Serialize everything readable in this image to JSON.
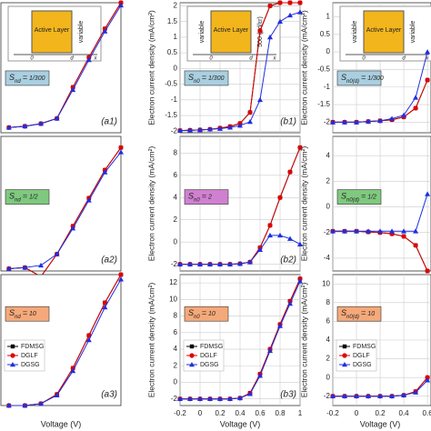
{
  "chart_data": [
    {
      "type": "line",
      "panel_label": "(a1)",
      "xlim": [
        0.25,
        1.0
      ],
      "ylim": [
        -2,
        8
      ],
      "x": [
        0.3,
        0.4,
        0.5,
        0.6,
        0.7,
        0.8,
        0.9,
        1.0
      ],
      "annotation": {
        "symbol": "S",
        "subscript": "nd",
        "relation": "=",
        "value": "1/300",
        "color": "#a9cfe0"
      },
      "inset": {
        "left": "",
        "center": "Active Layer",
        "right": "variable",
        "axis": [
          "0",
          "d",
          "x"
        ]
      },
      "series": [
        {
          "color": "#000000",
          "marker": "square",
          "values": [
            -1.6,
            -1.5,
            -1.3,
            -0.9,
            1.5,
            3.8,
            6,
            8
          ]
        },
        {
          "color": "#e00000",
          "marker": "circle",
          "values": [
            -1.6,
            -1.5,
            -1.3,
            -0.9,
            1.5,
            3.8,
            6,
            8
          ]
        },
        {
          "color": "#1f2fe0",
          "marker": "triangle",
          "values": [
            -1.6,
            -1.5,
            -1.3,
            -0.9,
            1.3,
            3.6,
            5.8,
            7.8
          ]
        }
      ]
    },
    {
      "type": "line",
      "panel_label": "(b1)",
      "xlim": [
        -0.2,
        1.0
      ],
      "xticks": [
        -0.2,
        0,
        0.2,
        0.4,
        0.6,
        0.8,
        1
      ],
      "ylim": [
        -2.05,
        2.1
      ],
      "yticks": [
        -2,
        -1.5,
        -1,
        -0.5,
        0,
        0.5,
        1,
        1.5,
        2
      ],
      "grid": true,
      "ylabel": "Electron current density (mA/cm²)",
      "x": [
        -0.2,
        -0.1,
        0,
        0.1,
        0.2,
        0.3,
        0.4,
        0.5,
        0.6,
        0.7,
        0.8,
        0.9,
        1.0
      ],
      "annotation": {
        "symbol": "S",
        "subscript": "n0",
        "relation": "=",
        "value": "1/300",
        "color": "#a9cfe0"
      },
      "inset": {
        "left": "variable",
        "center": "Active Layer",
        "right": "500 (ρd/εr)",
        "axis": [
          "0",
          "d",
          "x"
        ]
      },
      "series": [
        {
          "color": "#000000",
          "marker": "square",
          "values": [
            -1.98,
            -1.97,
            -1.96,
            -1.94,
            -1.9,
            -1.85,
            -1.75,
            -1.4,
            1.2,
            2.0,
            2.1,
            2.1,
            2.1
          ]
        },
        {
          "color": "#e00000",
          "marker": "circle",
          "values": [
            -1.98,
            -1.97,
            -1.96,
            -1.94,
            -1.9,
            -1.85,
            -1.75,
            -1.4,
            1.2,
            2.0,
            2.1,
            2.1,
            2.1
          ]
        },
        {
          "color": "#1f2fe0",
          "marker": "triangle",
          "values": [
            -1.98,
            -1.97,
            -1.96,
            -1.94,
            -1.92,
            -1.88,
            -1.82,
            -1.7,
            -1.0,
            1.0,
            1.5,
            1.7,
            1.8
          ]
        }
      ]
    },
    {
      "type": "line",
      "xlim": [
        -0.2,
        0.63
      ],
      "xticks": [
        -0.2,
        0,
        0.2,
        0.4,
        0.6
      ],
      "ylim": [
        -2.3,
        1.4
      ],
      "yticks": [
        -2,
        -1.5,
        -1,
        -0.5,
        0,
        0.5,
        1
      ],
      "grid": true,
      "ylabel": "Electron current density (mA/cm²)",
      "x": [
        -0.2,
        -0.1,
        0,
        0.1,
        0.2,
        0.3,
        0.4,
        0.5,
        0.6
      ],
      "annotation": {
        "symbol": "S",
        "subscript": "n0(d)",
        "relation": "=",
        "value": "1/300",
        "color": "#a9cfe0"
      },
      "inset": {
        "left": "variable",
        "center": "Active Layer",
        "right": "variable",
        "axis": [
          "0",
          "d",
          "x"
        ]
      },
      "series": [
        {
          "color": "#000000",
          "marker": "square",
          "values": [
            -2,
            -2,
            -2,
            -1.98,
            -1.96,
            -1.93,
            -1.85,
            -1.6,
            -0.8
          ]
        },
        {
          "color": "#e00000",
          "marker": "circle",
          "values": [
            -2,
            -2,
            -2,
            -1.98,
            -1.96,
            -1.93,
            -1.85,
            -1.6,
            -0.8
          ]
        },
        {
          "color": "#1f2fe0",
          "marker": "triangle",
          "values": [
            -2,
            -2,
            -2,
            -1.98,
            -1.96,
            -1.9,
            -1.8,
            -1.3,
            0
          ]
        }
      ]
    },
    {
      "type": "line",
      "panel_label": "(a2)",
      "xlim": [
        0.25,
        1.0
      ],
      "ylim": [
        -2,
        10
      ],
      "x": [
        0.3,
        0.4,
        0.5,
        0.6,
        0.7,
        0.8,
        0.9,
        1.0
      ],
      "annotation": {
        "symbol": "S",
        "subscript": "nd",
        "relation": "=",
        "value": "1/2",
        "color": "#7fc97f"
      },
      "series": [
        {
          "color": "#000000",
          "marker": "square",
          "values": [
            -1.8,
            -1.7,
            -2.5,
            -0.5,
            2,
            4.5,
            7,
            9
          ]
        },
        {
          "color": "#e00000",
          "marker": "circle",
          "values": [
            -1.8,
            -1.7,
            -2.5,
            -0.5,
            2,
            4.5,
            7,
            9
          ]
        },
        {
          "color": "#1f2fe0",
          "marker": "triangle",
          "values": [
            -1.8,
            -1.7,
            -1.5,
            -0.5,
            1.8,
            4.3,
            6.8,
            8.6
          ]
        }
      ]
    },
    {
      "type": "line",
      "panel_label": "(b2)",
      "xlim": [
        -0.2,
        1.0
      ],
      "xticks": [
        -0.2,
        0,
        0.2,
        0.4,
        0.6,
        0.8,
        1
      ],
      "ylim": [
        -2.6,
        9.5
      ],
      "yticks": [
        -2,
        0,
        2,
        4,
        6,
        8
      ],
      "grid": true,
      "ylabel": "Electron current density (mA/cm²)",
      "x": [
        -0.2,
        -0.1,
        0,
        0.1,
        0.2,
        0.3,
        0.4,
        0.5,
        0.6,
        0.7,
        0.8,
        0.9,
        1.0
      ],
      "annotation": {
        "symbol": "S",
        "subscript": "n0",
        "relation": "=",
        "value": "2",
        "color": "#d080d0"
      },
      "series": [
        {
          "color": "#000000",
          "marker": "square",
          "values": [
            -2,
            -2,
            -2,
            -2,
            -2,
            -2,
            -1.95,
            -1.8,
            -0.5,
            1.5,
            4,
            6.3,
            8.5
          ]
        },
        {
          "color": "#e00000",
          "marker": "circle",
          "values": [
            -2,
            -2,
            -2,
            -2,
            -2,
            -2,
            -1.95,
            -1.8,
            -0.5,
            1.5,
            4,
            6.3,
            8.5
          ]
        },
        {
          "color": "#1f2fe0",
          "marker": "triangle",
          "values": [
            -2,
            -2,
            -2,
            -2,
            -2,
            -2,
            -1.95,
            -1.8,
            -0.7,
            0.6,
            0.6,
            0.3,
            -0.2
          ]
        }
      ]
    },
    {
      "type": "line",
      "xlim": [
        -0.2,
        0.63
      ],
      "xticks": [
        -0.2,
        0,
        0.2,
        0.4,
        0.6
      ],
      "ylim": [
        -5,
        5.5
      ],
      "yticks": [
        -4,
        -2,
        0,
        2,
        4
      ],
      "grid": true,
      "ylabel": "Electron current density (mA/cm²)",
      "x": [
        -0.2,
        -0.1,
        0,
        0.1,
        0.2,
        0.3,
        0.4,
        0.5,
        0.6
      ],
      "annotation": {
        "symbol": "S",
        "subscript": "n0(d)",
        "relation": "=",
        "value": "1/2",
        "color": "#7fc97f"
      },
      "series": [
        {
          "color": "#000000",
          "marker": "square",
          "values": [
            -1.9,
            -1.9,
            -1.9,
            -1.95,
            -2,
            -2.1,
            -2.3,
            -3,
            -5
          ]
        },
        {
          "color": "#e00000",
          "marker": "circle",
          "values": [
            -1.9,
            -1.9,
            -1.9,
            -1.95,
            -2,
            -2.1,
            -2.3,
            -3,
            -5
          ]
        },
        {
          "color": "#1f2fe0",
          "marker": "triangle",
          "values": [
            -1.9,
            -1.9,
            -1.9,
            -1.9,
            -1.9,
            -1.9,
            -1.9,
            -1.9,
            1
          ]
        }
      ]
    },
    {
      "type": "line",
      "panel_label": "(a3)",
      "xlim": [
        0.25,
        1.0
      ],
      "ylim": [
        -2,
        12
      ],
      "xlabel": "Voltage (V)",
      "legend": "lower left",
      "x": [
        0.3,
        0.4,
        0.5,
        0.6,
        0.7,
        0.8,
        0.9,
        1.0
      ],
      "annotation": {
        "symbol": "S",
        "subscript": "nd",
        "relation": "=",
        "value": "10",
        "color": "#f5a97a"
      },
      "series": [
        {
          "name": "FDMSG",
          "color": "#000000",
          "marker": "square",
          "values": [
            -2,
            -2,
            -1.8,
            -0.8,
            2,
            5.5,
            9,
            12
          ]
        },
        {
          "name": "DGLF",
          "color": "#e00000",
          "marker": "circle",
          "values": [
            -2,
            -2,
            -1.8,
            -0.8,
            2,
            5.5,
            9,
            12
          ]
        },
        {
          "name": "DGSG",
          "color": "#1f2fe0",
          "marker": "triangle",
          "values": [
            -2,
            -2,
            -1.8,
            -0.9,
            1.7,
            5,
            8.5,
            11.5
          ]
        }
      ]
    },
    {
      "type": "line",
      "panel_label": "(b3)",
      "xlim": [
        -0.2,
        1.0
      ],
      "xticks": [
        -0.2,
        0,
        0.2,
        0.4,
        0.6,
        0.8,
        1
      ],
      "ylim": [
        -2.8,
        13
      ],
      "yticks": [
        -2,
        0,
        2,
        4,
        6,
        8,
        10,
        12
      ],
      "grid": true,
      "xlabel": "Voltage (V)",
      "ylabel": "Electron current density (mA/cm²)",
      "legend": "lower left",
      "x": [
        -0.2,
        -0.1,
        0,
        0.1,
        0.2,
        0.3,
        0.4,
        0.5,
        0.6,
        0.7,
        0.8,
        0.9,
        1.0
      ],
      "annotation": {
        "symbol": "S",
        "subscript": "n0",
        "relation": "=",
        "value": "10",
        "color": "#f5a97a"
      },
      "series": [
        {
          "name": "FDMSG",
          "color": "#000000",
          "marker": "square",
          "values": [
            -2,
            -2,
            -2,
            -2,
            -2,
            -2,
            -1.9,
            -1.3,
            1.0,
            4,
            7,
            9.8,
            12.5
          ]
        },
        {
          "name": "DGLF",
          "color": "#e00000",
          "marker": "circle",
          "values": [
            -2,
            -2,
            -2,
            -2,
            -2,
            -2,
            -1.9,
            -1.3,
            1.0,
            4,
            7,
            9.8,
            12.5
          ]
        },
        {
          "name": "DGSG",
          "color": "#1f2fe0",
          "marker": "triangle",
          "values": [
            -2,
            -2,
            -2,
            -2,
            -2,
            -2,
            -1.9,
            -1.4,
            0.8,
            3.8,
            6.8,
            9.5,
            12.2
          ]
        }
      ]
    },
    {
      "type": "line",
      "xlim": [
        -0.2,
        0.63
      ],
      "xticks": [
        -0.2,
        0,
        0.2,
        0.4,
        0.6
      ],
      "ylim": [
        -3,
        11
      ],
      "yticks": [
        -2,
        0,
        2,
        4,
        6,
        8,
        10
      ],
      "grid": true,
      "xlabel": "Voltage (V)",
      "ylabel": "Electron current density (mA/cm²)",
      "legend": "lower left",
      "x": [
        -0.2,
        -0.1,
        0,
        0.1,
        0.2,
        0.3,
        0.4,
        0.5,
        0.6
      ],
      "annotation": {
        "symbol": "S",
        "subscript": "n0(d)",
        "relation": "=",
        "value": "10",
        "color": "#f5a97a"
      },
      "series": [
        {
          "name": "FDMSG",
          "color": "#000000",
          "marker": "square",
          "values": [
            -2,
            -2,
            -2,
            -2,
            -2,
            -2,
            -1.9,
            -1.5,
            0
          ]
        },
        {
          "name": "DGLF",
          "color": "#e00000",
          "marker": "circle",
          "values": [
            -2,
            -2,
            -2,
            -2,
            -2,
            -2,
            -1.9,
            -1.5,
            0
          ]
        },
        {
          "name": "DGSG",
          "color": "#1f2fe0",
          "marker": "triangle",
          "values": [
            -2,
            -2,
            -2,
            -2,
            -2,
            -2,
            -1.9,
            -1.6,
            -0.3
          ]
        }
      ]
    }
  ]
}
